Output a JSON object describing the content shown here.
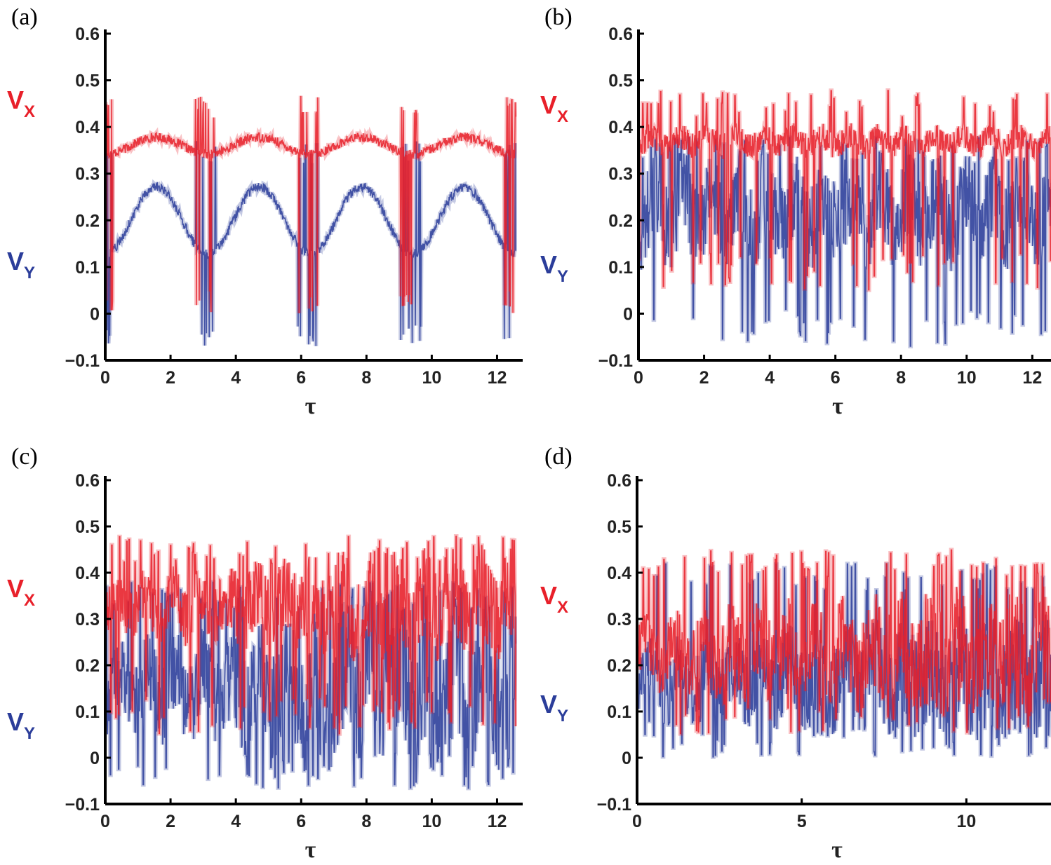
{
  "chart_data": [
    {
      "type": "line",
      "panel_label": "(a)",
      "xlabel": "τ",
      "ylabel_series": [
        {
          "name": "V",
          "subscript": "X",
          "color": "#e8202a"
        },
        {
          "name": "V",
          "subscript": "Y",
          "color": "#2b3d9a"
        }
      ],
      "xlim": [
        0,
        12.57
      ],
      "ylim": [
        -0.1,
        0.6
      ],
      "xticks": [
        0,
        2,
        4,
        6,
        8,
        10,
        12
      ],
      "yticks": [
        "−0.1",
        "0",
        "0.1",
        "0.2",
        "0.3",
        "0.4",
        "0.5",
        "0.6"
      ],
      "series": [
        {
          "name": "Vx",
          "color": "#e8202a",
          "regime": "periodic",
          "baseline": 0.36,
          "spread": 0.03,
          "spike_low": 0.0,
          "spike_high": 0.47,
          "period": 3.14
        },
        {
          "name": "Vy",
          "color": "#2b3d9a",
          "regime": "periodic",
          "baseline": 0.2,
          "spread": 0.12,
          "spike_low": -0.07,
          "spike_high": 0.37,
          "period": 3.14
        }
      ]
    },
    {
      "type": "line",
      "panel_label": "(b)",
      "xlabel": "τ",
      "ylabel_series": [
        {
          "name": "V",
          "subscript": "X",
          "color": "#e8202a"
        },
        {
          "name": "V",
          "subscript": "Y",
          "color": "#2b3d9a"
        }
      ],
      "xlim": [
        0,
        12.57
      ],
      "ylim": [
        -0.1,
        0.6
      ],
      "xticks": [
        0,
        2,
        4,
        6,
        8,
        10,
        12
      ],
      "yticks": [
        "−0.1",
        "0",
        "0.1",
        "0.2",
        "0.3",
        "0.4",
        "0.5",
        "0.6"
      ],
      "series": [
        {
          "name": "Vx",
          "color": "#e8202a",
          "regime": "quasi-periodic",
          "baseline": 0.37,
          "spread": 0.03,
          "spike_low": 0.05,
          "spike_high": 0.48
        },
        {
          "name": "Vy",
          "color": "#2b3d9a",
          "regime": "quasi-periodic",
          "baseline": 0.22,
          "spread": 0.1,
          "spike_low": -0.07,
          "spike_high": 0.38
        }
      ]
    },
    {
      "type": "line",
      "panel_label": "(c)",
      "xlabel": "τ",
      "ylabel_series": [
        {
          "name": "V",
          "subscript": "X",
          "color": "#e8202a"
        },
        {
          "name": "V",
          "subscript": "Y",
          "color": "#2b3d9a"
        }
      ],
      "xlim": [
        0,
        12.57
      ],
      "ylim": [
        -0.1,
        0.6
      ],
      "xticks": [
        0,
        2,
        4,
        6,
        8,
        10,
        12
      ],
      "yticks": [
        "−0.1",
        "0",
        "0.1",
        "0.2",
        "0.3",
        "0.4",
        "0.5",
        "0.6"
      ],
      "series": [
        {
          "name": "Vx",
          "color": "#e8202a",
          "regime": "chaotic",
          "baseline": 0.33,
          "spread": 0.07,
          "spike_low": 0.05,
          "spike_high": 0.48
        },
        {
          "name": "Vy",
          "color": "#2b3d9a",
          "regime": "chaotic",
          "baseline": 0.15,
          "spread": 0.1,
          "spike_low": -0.07,
          "spike_high": 0.38
        }
      ]
    },
    {
      "type": "line",
      "panel_label": "(d)",
      "xlabel": "τ",
      "ylabel_series": [
        {
          "name": "V",
          "subscript": "X",
          "color": "#e8202a"
        },
        {
          "name": "V",
          "subscript": "Y",
          "color": "#2b3d9a"
        }
      ],
      "xlim": [
        0,
        12.57
      ],
      "ylim": [
        -0.1,
        0.6
      ],
      "xticks": [
        0,
        5,
        10
      ],
      "yticks": [
        "−0.1",
        "0",
        "0.1",
        "0.2",
        "0.3",
        "0.4",
        "0.5",
        "0.6"
      ],
      "series": [
        {
          "name": "Vx",
          "color": "#e8202a",
          "regime": "chaotic",
          "baseline": 0.23,
          "spread": 0.08,
          "spike_low": 0.05,
          "spike_high": 0.45
        },
        {
          "name": "Vy",
          "color": "#2b3d9a",
          "regime": "chaotic",
          "baseline": 0.17,
          "spread": 0.08,
          "spike_low": 0.0,
          "spike_high": 0.42
        }
      ]
    }
  ]
}
